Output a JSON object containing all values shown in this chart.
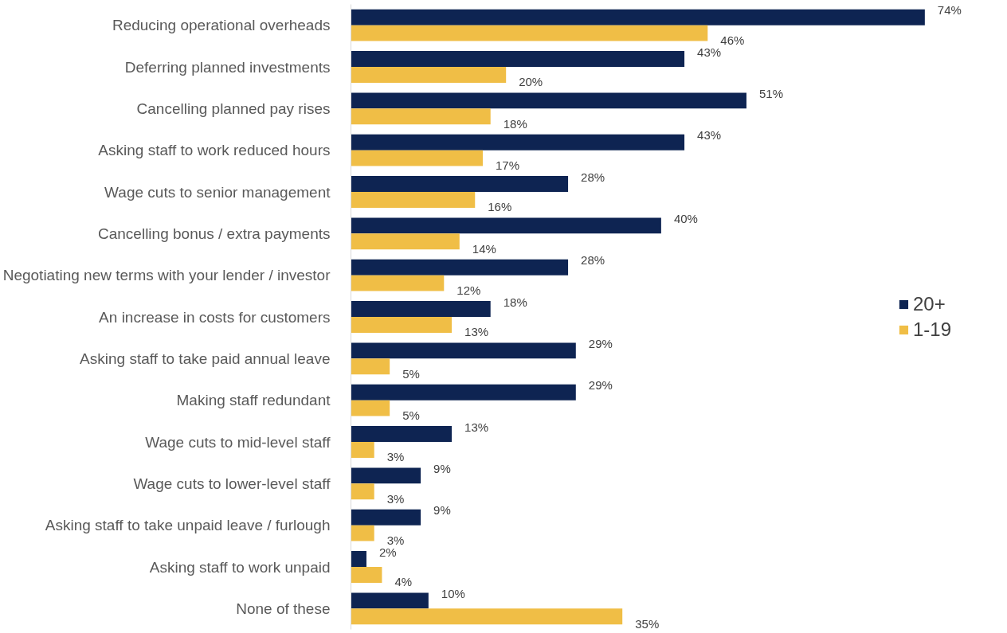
{
  "chart_data": {
    "type": "bar",
    "orientation": "horizontal",
    "categories": [
      "Reducing operational overheads",
      "Deferring planned investments",
      "Cancelling planned pay rises",
      "Asking staff to work reduced hours",
      "Wage cuts to senior management",
      "Cancelling bonus / extra payments",
      "Negotiating new terms with your lender / investor",
      "An increase in costs for customers",
      "Asking staff to take paid annual leave",
      "Making staff redundant",
      "Wage cuts to mid-level staff",
      "Wage cuts to lower-level staff",
      "Asking staff to take unpaid leave / furlough",
      "Asking staff to work unpaid",
      "None of these"
    ],
    "series": [
      {
        "name": "20+",
        "color": "#0e2452",
        "values": [
          74,
          43,
          51,
          43,
          28,
          40,
          28,
          18,
          29,
          29,
          13,
          9,
          9,
          2,
          10
        ],
        "value_labels": [
          "74%",
          "43%",
          "51%",
          "43%",
          "28%",
          "40%",
          "28%",
          "18%",
          "29%",
          "29%",
          "13%",
          "9%",
          "9%",
          "2%",
          "10%"
        ]
      },
      {
        "name": "1-19",
        "color": "#f0be46",
        "values": [
          46,
          20,
          18,
          17,
          16,
          14,
          12,
          13,
          5,
          5,
          3,
          3,
          3,
          4,
          35
        ],
        "value_labels": [
          "46%",
          "20%",
          "18%",
          "17%",
          "16%",
          "14%",
          "12%",
          "13%",
          "5%",
          "5%",
          "3%",
          "3%",
          "3%",
          "4%",
          "35%"
        ]
      }
    ],
    "legend": "right",
    "tick_labels": "y",
    "grid": false
  }
}
